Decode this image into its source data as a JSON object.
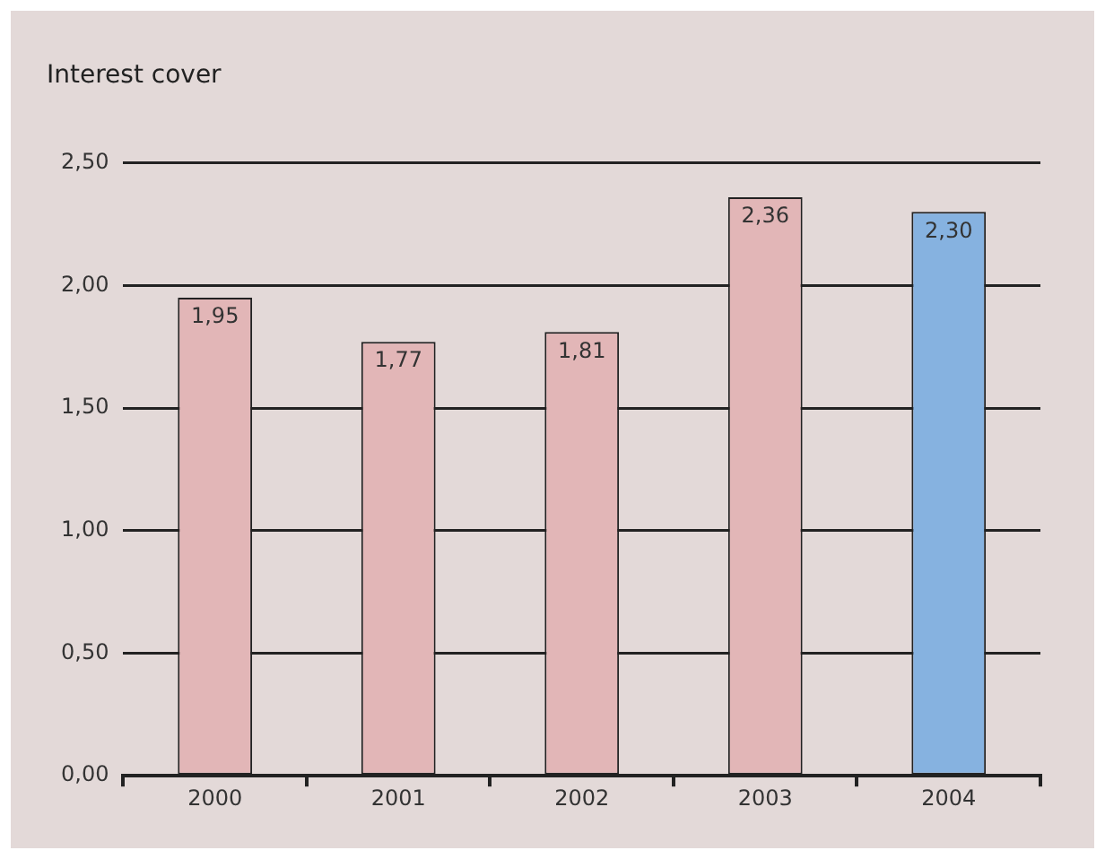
{
  "chart_data": {
    "type": "bar",
    "title": "Interest cover",
    "categories": [
      "2000",
      "2001",
      "2002",
      "2003",
      "2004"
    ],
    "values": [
      1.95,
      1.77,
      1.81,
      2.36,
      2.3
    ],
    "colors": [
      "#e2b6b7",
      "#e2b6b7",
      "#e2b6b7",
      "#e2b6b7",
      "#86b2e0"
    ],
    "value_labels": [
      "1,95",
      "1,77",
      "1,81",
      "2,36",
      "2,30"
    ],
    "ylim": [
      0,
      2.5
    ],
    "yticks": [
      {
        "value": 0,
        "label": "0,00"
      },
      {
        "value": 0.5,
        "label": "0,50"
      },
      {
        "value": 1,
        "label": "1,00"
      },
      {
        "value": 1.5,
        "label": "1,50"
      },
      {
        "value": 2,
        "label": "2,00"
      },
      {
        "value": 2.5,
        "label": "2,50"
      }
    ],
    "grid": "y"
  }
}
